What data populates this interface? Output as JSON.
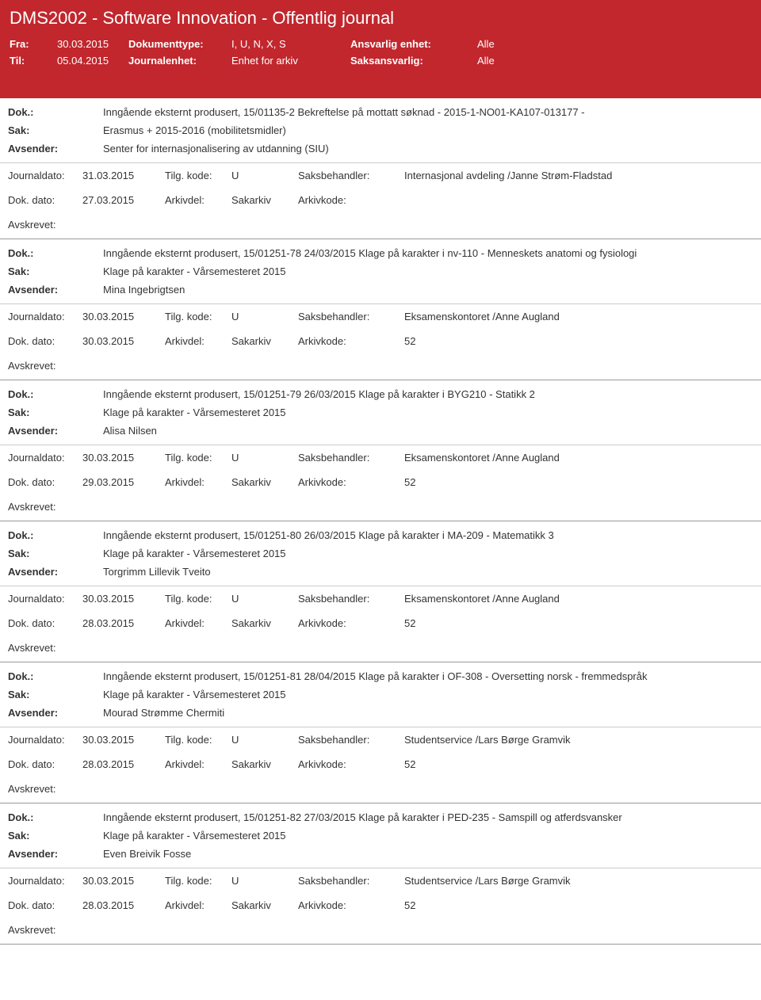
{
  "header": {
    "title": "DMS2002 - Software Innovation - Offentlig journal",
    "fra_lbl": "Fra:",
    "fra_val": "30.03.2015",
    "til_lbl": "Til:",
    "til_val": "05.04.2015",
    "doktype_lbl": "Dokumenttype:",
    "doktype_val": "I, U, N, X, S",
    "journalenhet_lbl": "Journalenhet:",
    "journalenhet_val": "Enhet for arkiv",
    "ansvarlig_lbl": "Ansvarlig enhet:",
    "ansvarlig_val": "Alle",
    "saksansvarlig_lbl": "Saksansvarlig:",
    "saksansvarlig_val": "Alle"
  },
  "labels": {
    "dok": "Dok.:",
    "sak": "Sak:",
    "avsender": "Avsender:",
    "journaldato": "Journaldato:",
    "tilgkode": "Tilg. kode:",
    "saksbehandler": "Saksbehandler:",
    "dokdato": "Dok. dato:",
    "arkivdel": "Arkivdel:",
    "arkivkode": "Arkivkode:",
    "avskrevet": "Avskrevet:"
  },
  "entries": [
    {
      "dok": "Inngående eksternt produsert, 15/01135-2 Bekreftelse på mottatt søknad - 2015-1-NO01-KA107-013177 -",
      "sak": "Erasmus + 2015-2016 (mobilitetsmidler)",
      "avsender": "Senter for internasjonalisering av utdanning (SIU)",
      "journaldato": "31.03.2015",
      "tilgkode": "U",
      "saksbehandler": "Internasjonal avdeling /Janne Strøm-Fladstad",
      "dokdato": "27.03.2015",
      "arkivdel": "Sakarkiv",
      "arkivkode": ""
    },
    {
      "dok": "Inngående eksternt produsert, 15/01251-78 24/03/2015 Klage på karakter i nv-110 - Menneskets anatomi og fysiologi",
      "sak": "Klage på karakter - Vårsemesteret 2015",
      "avsender": "Mina Ingebrigtsen",
      "journaldato": "30.03.2015",
      "tilgkode": "U",
      "saksbehandler": "Eksamenskontoret /Anne Augland",
      "dokdato": "30.03.2015",
      "arkivdel": "Sakarkiv",
      "arkivkode": "52"
    },
    {
      "dok": "Inngående eksternt produsert, 15/01251-79 26/03/2015 Klage på karakter i BYG210 - Statikk 2",
      "sak": "Klage på karakter - Vårsemesteret 2015",
      "avsender": "Alisa Nilsen",
      "journaldato": "30.03.2015",
      "tilgkode": "U",
      "saksbehandler": "Eksamenskontoret /Anne Augland",
      "dokdato": "29.03.2015",
      "arkivdel": "Sakarkiv",
      "arkivkode": "52"
    },
    {
      "dok": "Inngående eksternt produsert, 15/01251-80 26/03/2015 Klage på karakter i MA-209 - Matematikk 3",
      "sak": "Klage på karakter - Vårsemesteret 2015",
      "avsender": "Torgrimm Lillevik Tveito",
      "journaldato": "30.03.2015",
      "tilgkode": "U",
      "saksbehandler": "Eksamenskontoret /Anne Augland",
      "dokdato": "28.03.2015",
      "arkivdel": "Sakarkiv",
      "arkivkode": "52"
    },
    {
      "dok": "Inngående eksternt produsert, 15/01251-81 28/04/2015 Klage på karakter i OF-308 - Oversetting norsk - fremmedspråk",
      "sak": "Klage på karakter - Vårsemesteret 2015",
      "avsender": "Mourad Strømme Chermiti",
      "journaldato": "30.03.2015",
      "tilgkode": "U",
      "saksbehandler": "Studentservice /Lars Børge Gramvik",
      "dokdato": "28.03.2015",
      "arkivdel": "Sakarkiv",
      "arkivkode": "52"
    },
    {
      "dok": "Inngående eksternt produsert, 15/01251-82 27/03/2015 Klage på karakter i PED-235 - Samspill og atferdsvansker",
      "sak": "Klage på karakter - Vårsemesteret 2015",
      "avsender": "Even Breivik Fosse",
      "journaldato": "30.03.2015",
      "tilgkode": "U",
      "saksbehandler": "Studentservice /Lars Børge Gramvik",
      "dokdato": "28.03.2015",
      "arkivdel": "Sakarkiv",
      "arkivkode": "52"
    }
  ]
}
